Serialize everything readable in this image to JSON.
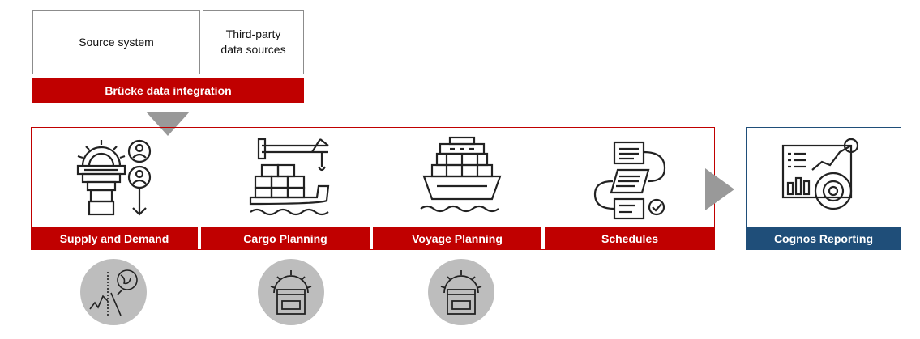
{
  "sources": {
    "source_system": "Source system",
    "third_party_line1": "Third-party",
    "third_party_line2": "data sources"
  },
  "integration_label": "Brücke data integration",
  "stages": [
    {
      "label": "Supply and Demand",
      "icon": "supply-demand-icon"
    },
    {
      "label": "Cargo Planning",
      "icon": "cargo-ship-crane-icon"
    },
    {
      "label": "Voyage Planning",
      "icon": "container-ship-icon"
    },
    {
      "label": "Schedules",
      "icon": "schedule-flow-icon"
    }
  ],
  "reporting": {
    "label": "Cognos Reporting",
    "icon": "dashboard-analytics-icon"
  },
  "tools": [
    {
      "icon": "analytics-chart-icon"
    },
    {
      "icon": "gear-browser-icon"
    },
    {
      "icon": "gear-browser-icon"
    }
  ],
  "colors": {
    "accent_red": "#c00000",
    "accent_blue": "#1f4e79",
    "tool_circle": "#bdbdbd"
  }
}
